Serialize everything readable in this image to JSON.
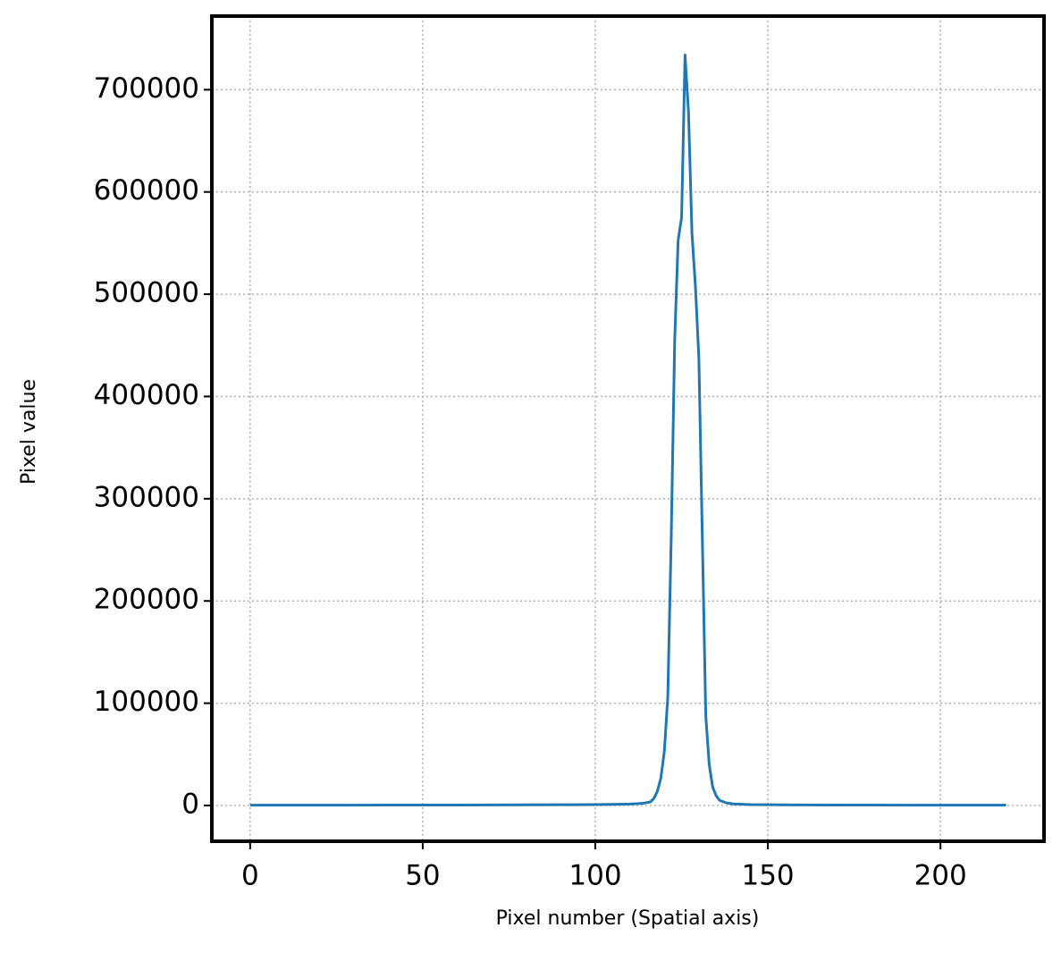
{
  "chart_data": {
    "type": "line",
    "x_label": "Pixel number (Spatial axis)",
    "y_label": "Pixel value",
    "x": [
      0,
      10,
      20,
      30,
      40,
      50,
      60,
      70,
      80,
      90,
      100,
      105,
      110,
      112,
      114,
      116,
      117,
      118,
      119,
      120,
      121,
      122,
      123,
      124,
      125,
      126,
      127,
      128,
      129,
      130,
      131,
      132,
      133,
      134,
      135,
      136,
      138,
      140,
      145,
      150,
      160,
      170,
      180,
      190,
      200,
      210,
      219
    ],
    "series": [
      {
        "name": "Pixel value",
        "color": "#1f77b4",
        "values": [
          300,
          300,
          350,
          350,
          400,
          400,
          450,
          500,
          600,
          700,
          900,
          1100,
          1400,
          1700,
          2200,
          3500,
          7000,
          14000,
          27000,
          53000,
          106000,
          263000,
          455000,
          553000,
          575000,
          734000,
          678000,
          560000,
          508000,
          438000,
          263000,
          88000,
          40000,
          18000,
          9600,
          5000,
          2500,
          1500,
          900,
          700,
          500,
          450,
          400,
          350,
          300,
          300,
          300
        ]
      }
    ],
    "xlim": [
      -11.1,
      230.0
    ],
    "ylim": [
      -35000,
      772000
    ],
    "xticks": [
      0,
      50,
      100,
      150,
      200
    ],
    "yticks": [
      0,
      100000,
      200000,
      300000,
      400000,
      500000,
      600000,
      700000
    ],
    "grid": true
  }
}
